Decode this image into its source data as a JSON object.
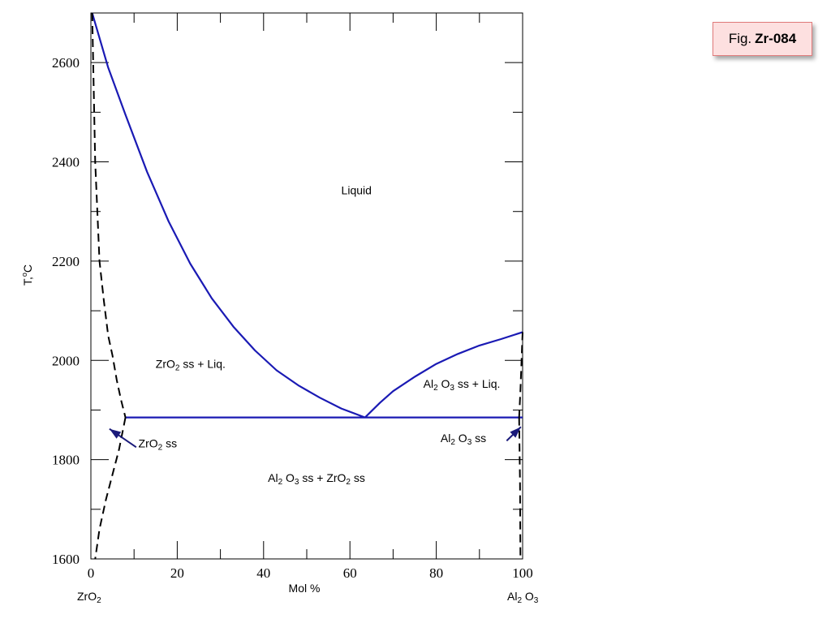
{
  "figure": {
    "prefix": "Fig.",
    "id": "Zr-084"
  },
  "chart_data": {
    "type": "line",
    "title": "",
    "xlabel": "Mol %",
    "ylabel": "T,°C",
    "ylabel_parts": {
      "main": "T,",
      "sup": "o",
      "unit": "C"
    },
    "xlim": [
      0,
      100
    ],
    "ylim": [
      1600,
      2700
    ],
    "x_ticks": [
      0,
      20,
      40,
      60,
      80,
      100
    ],
    "y_ticks": [
      1600,
      1800,
      2000,
      2200,
      2400,
      2600
    ],
    "x_tick_labels": [
      "0",
      "20",
      "40",
      "60",
      "80",
      "100"
    ],
    "y_tick_labels": [
      "1600",
      "1800",
      "2000",
      "2200",
      "2400",
      "2600"
    ],
    "grid": false,
    "end_members": [
      {
        "parts": [
          {
            "t": "ZrO"
          },
          {
            "t": "2",
            "sub": true
          }
        ]
      },
      {
        "parts": [
          {
            "t": "Al"
          },
          {
            "t": "2",
            "sub": true
          },
          {
            "t": " O"
          },
          {
            "t": "3",
            "sub": true
          }
        ]
      }
    ],
    "eutectic": {
      "x": 63.5,
      "y": 1885
    },
    "series": [
      {
        "style": "solid",
        "color": "#1a1ab4",
        "x": [
          0.3,
          4,
          8,
          13,
          18,
          23,
          28,
          33,
          38,
          43,
          48,
          53,
          58,
          63.5
        ],
        "y": [
          2700,
          2590,
          2495,
          2380,
          2280,
          2195,
          2125,
          2068,
          2020,
          1980,
          1950,
          1925,
          1903,
          1885
        ]
      },
      {
        "style": "solid",
        "color": "#1a1ab4",
        "x": [
          63.5,
          67,
          70,
          75,
          80,
          85,
          90,
          95,
          100
        ],
        "y": [
          1885,
          1915,
          1938,
          1967,
          1993,
          2013,
          2030,
          2043,
          2057
        ]
      },
      {
        "style": "solid",
        "color": "#1a1ab4",
        "x": [
          8,
          100
        ],
        "y": [
          1885,
          1885
        ]
      },
      {
        "style": "dashed",
        "color": "#000000",
        "x": [
          0.3,
          1,
          2,
          3,
          4,
          5,
          6,
          7,
          8
        ],
        "y": [
          2700,
          2400,
          2200,
          2120,
          2050,
          2010,
          1960,
          1920,
          1885
        ]
      },
      {
        "style": "dashed",
        "color": "#000000",
        "x": [
          8,
          6.5,
          5,
          3.5,
          2,
          1
        ],
        "y": [
          1885,
          1820,
          1770,
          1720,
          1660,
          1600
        ]
      },
      {
        "style": "dashed",
        "color": "#000000",
        "x": [
          100,
          99.5,
          99.2
        ],
        "y": [
          2057,
          1940,
          1885
        ]
      },
      {
        "style": "dashed",
        "color": "#000000",
        "x": [
          99.2,
          99.4,
          99.5
        ],
        "y": [
          1885,
          1750,
          1600
        ]
      }
    ],
    "region_labels": [
      {
        "x": 58,
        "y": 2335,
        "parts": [
          {
            "t": "Liquid"
          }
        ]
      },
      {
        "x": 15,
        "y": 1985,
        "parts": [
          {
            "t": "ZrO"
          },
          {
            "t": "2",
            "sub": true
          },
          {
            "t": "  ss + Liq."
          }
        ]
      },
      {
        "x": 77,
        "y": 1945,
        "parts": [
          {
            "t": "Al"
          },
          {
            "t": "2",
            "sub": true
          },
          {
            "t": " O"
          },
          {
            "t": "3",
            "sub": true
          },
          {
            "t": "  ss + Liq."
          }
        ]
      },
      {
        "x": 81,
        "y": 1835,
        "parts": [
          {
            "t": "Al"
          },
          {
            "t": "2",
            "sub": true
          },
          {
            "t": " O"
          },
          {
            "t": "3",
            "sub": true
          },
          {
            "t": "  ss"
          }
        ]
      },
      {
        "x": 11,
        "y": 1825,
        "parts": [
          {
            "t": "ZrO"
          },
          {
            "t": "2",
            "sub": true
          },
          {
            "t": "  ss"
          }
        ]
      },
      {
        "x": 41,
        "y": 1755,
        "parts": [
          {
            "t": "Al"
          },
          {
            "t": "2",
            "sub": true
          },
          {
            "t": " O"
          },
          {
            "t": "3",
            "sub": true
          },
          {
            "t": "  ss + ZrO"
          },
          {
            "t": "2",
            "sub": true
          },
          {
            "t": "  ss"
          }
        ]
      }
    ],
    "arrows": [
      {
        "from": [
          10.5,
          1825
        ],
        "to": [
          4.3,
          1862
        ]
      },
      {
        "from": [
          96.3,
          1838
        ],
        "to": [
          99.6,
          1866
        ]
      }
    ]
  }
}
